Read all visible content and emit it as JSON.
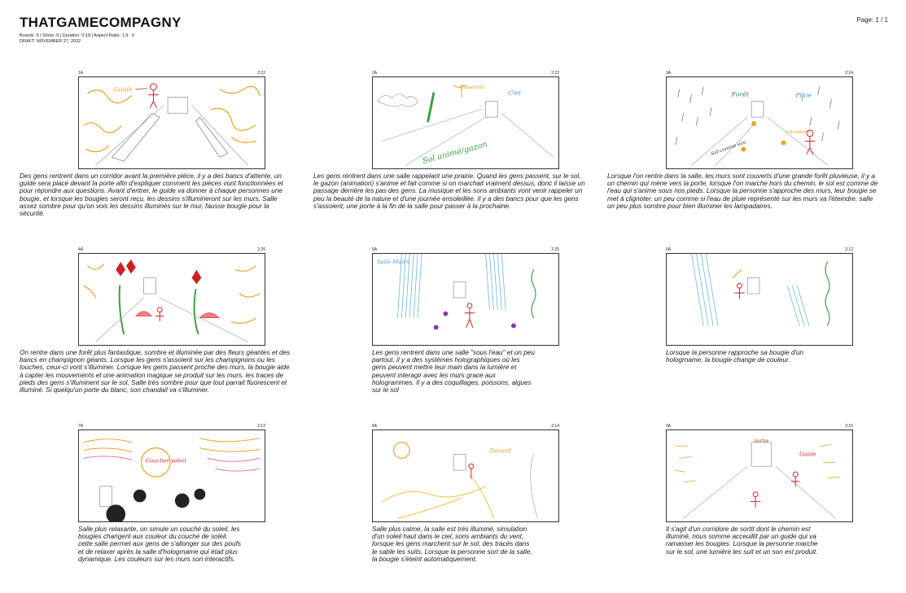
{
  "header": {
    "title": "THATGAMECOMPAGNY",
    "meta_line1": "Boards: 9  |  Shots: 9  |  Duration: 0:18  |  Aspect Ratio: 1.9 : 9",
    "meta_line2": "DRAFT: NOVEMBER 27, 2022",
    "page": "Page: 1 / 1"
  },
  "panels": [
    {
      "num": "1A",
      "dur": "2:22",
      "labels": [
        "Guide"
      ],
      "text": "Des gens rentrent dans un corridor avant la première pièce, il y a des bancs d'attente, un guide sera placé devant la porte afin d'expliquer comment les pièces vont fonctionnées et pour répondre aux questions. Avant d'entrer, le guide va donner à chaque personnes une bougie, et lorsque les bougies seront reçu, les dessins s'illumineront sur les murs. Salle assez sombre pour qu'on vois les dessins illuminés sur le mur, fausse bougie pour la sécurité."
    },
    {
      "num": "2A",
      "dur": "2:22",
      "labels": [
        "Pissenlit",
        "Ciel",
        "Sol animé/gazon"
      ],
      "text": "Les gens rentrent dans une salle rappelant une prairie. Quand les gens passent, sur le sol, le gazon (animation) s'anime et fait comme si on marchait vraiment dessus, donc il laisse un passage derrière les pas des gens. La musique et les sons ambiants vont venir rappeler un peu la beauté de la nature et d'une journée ensoleillée. Il y a des bancs pour que les gens s'assoient, une porte à la fin de la salle pour passer à la prochaine."
    },
    {
      "num": "3A",
      "dur": "2:24",
      "labels": [
        "Forêt",
        "Pluie",
        "Sol comme eau",
        "Chandelle"
      ],
      "text": "Lorsque l'on rentre dans la salle, les murs sont couverts d'une grande forêt pluvieuse, il y a un chemin qui mène vers la porte, lorsque l'on marche hors du chemin, le sol est comme de l'eau qui s'anime sous nos pieds. Lorsque la personne s'approche des murs, leur bougie se met à clignoter, un peu comme si l'eau de pluie représenté sur les murs va l'éteindre. salle un peu plus sombre pour bien illuminer les lampadaires."
    },
    {
      "num": "4A",
      "dur": "2:25",
      "labels": [],
      "text": "On rentre dans une forêt plus fantastique, sombre et illuminée par des fleurs géantes et des bancs en champignon géants. Lorsque les gens s'assoient sur les champignons ou les touches, ceux-ci vont s'illuminer. Lorsque les gens passent proche des murs, la bougie aide à capter les mouvements et une animation magique se produit sur les murs. les traces de pieds des gens s'illuminent sur le sol. Salle très sombre pour que tout parrait fluorescent et illuminé. Si quelqu'un porte du blanc, son chandail va s'illuminer."
    },
    {
      "num": "5A",
      "dur": "2:25",
      "labels": [
        "Salle Marin"
      ],
      "text": "Les gens rentrent dans une salle \"sous l'eau\" et un peu partout, il y a des systèmes holographiques où les gens peuvent mettre leur main dans la lumière et peuvent interagir avec les murs grace aux hologrammes. Il y a des coquillages, poissons, algues sur le sol"
    },
    {
      "num": "6A",
      "dur": "2:12",
      "labels": [],
      "text": "Lorsque la personne rapproche sa bougie d'un hologrname, la bougie change de couleur."
    },
    {
      "num": "7A",
      "dur": "2:12",
      "labels": [
        "Coucher soleil"
      ],
      "text": "Salle plus relaxante, on simule un couché du soleil, les bougies changent aux couleur du couché de soleil. cette salle permet aux gens de s'allonger sur des poufs et de relaxer après la salle d'hologrname qui était plus dynamique. Les couleurs sur les murs son interactifs."
    },
    {
      "num": "8A",
      "dur": "2:14",
      "labels": [
        "Désert"
      ],
      "text": "Salle plus calme, la salle est très illuminé, simulation d'un soleil haut dans le ciel, sons ambiants du vent, lorsque les gens marchent sur le sol, des tracés dans le sable les suits. Lorsque la personne sort de la salle, la bougie s'éteint automatiquement."
    },
    {
      "num": "9A",
      "dur": "2:15",
      "labels": [
        "Sortie",
        "Guide"
      ],
      "text": "Il s'agit d'un corridore de sortit dont le chemin est illuminé, nous somme acceuillit par un guide qui va ramasser les bougies. Lorsque la personne marche sur le sol, une lumière les suit et un son est produit."
    }
  ],
  "colors": {
    "frame": "#333333",
    "sketch": "#9a9a9a",
    "orange": "#f0a020",
    "red": "#d02020",
    "green": "#3aa040",
    "blue": "#6ab8e0",
    "purple": "#8a3aa8"
  }
}
